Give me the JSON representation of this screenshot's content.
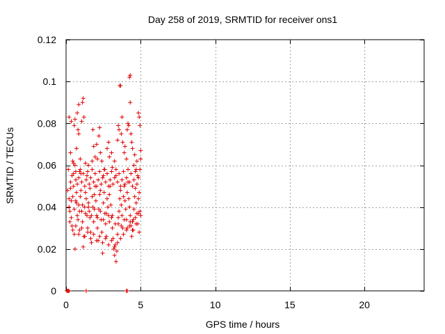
{
  "chart_data": {
    "type": "scatter",
    "title": "Day 258 of 2019, SRMTID for receiver ons1",
    "xlabel": "GPS time / hours",
    "ylabel": "SRMTID / TECUs",
    "xlim": [
      0,
      24
    ],
    "ylim": [
      0,
      0.12
    ],
    "xticks": [
      0,
      5,
      10,
      15,
      20
    ],
    "yticks": [
      0,
      0.02,
      0.04,
      0.06,
      0.08,
      0.1,
      0.12
    ],
    "grid": true,
    "legend": "none",
    "marker": "+",
    "color": "#e00000",
    "series": [
      {
        "name": "SRMTID",
        "points": [
          [
            0.05,
            0
          ],
          [
            0.1,
            0
          ],
          [
            0.15,
            0
          ],
          [
            0.2,
            0
          ],
          [
            1.35,
            0
          ],
          [
            4.05,
            0
          ],
          [
            4.1,
            0
          ],
          [
            0.2,
            0.083
          ],
          [
            0.35,
            0.081
          ],
          [
            0.55,
            0.079
          ],
          [
            0.6,
            0.082
          ],
          [
            0.75,
            0.085
          ],
          [
            0.85,
            0.089
          ],
          [
            1.15,
            0.092
          ],
          [
            1.1,
            0.09
          ],
          [
            1.2,
            0.083
          ],
          [
            1.05,
            0.081
          ],
          [
            0.3,
            0.066
          ],
          [
            0.45,
            0.062
          ],
          [
            0.5,
            0.056
          ],
          [
            0.6,
            0.06
          ],
          [
            0.65,
            0.053
          ],
          [
            0.7,
            0.068
          ],
          [
            0.8,
            0.077
          ],
          [
            0.95,
            0.063
          ],
          [
            0.9,
            0.057
          ],
          [
            0.85,
            0.075
          ],
          [
            1.0,
            0.056
          ],
          [
            1.3,
            0.061
          ],
          [
            1.4,
            0.055
          ],
          [
            1.5,
            0.06
          ],
          [
            1.6,
            0.049
          ],
          [
            1.75,
            0.062
          ],
          [
            1.8,
            0.077
          ],
          [
            1.85,
            0.069
          ],
          [
            1.95,
            0.064
          ],
          [
            2.05,
            0.07
          ],
          [
            2.1,
            0.063
          ],
          [
            2.2,
            0.074
          ],
          [
            2.25,
            0.078
          ],
          [
            2.3,
            0.066
          ],
          [
            2.4,
            0.062
          ],
          [
            2.5,
            0.055
          ],
          [
            2.6,
            0.058
          ],
          [
            2.75,
            0.068
          ],
          [
            2.85,
            0.071
          ],
          [
            2.9,
            0.064
          ],
          [
            3.05,
            0.066
          ],
          [
            3.1,
            0.059
          ],
          [
            3.25,
            0.062
          ],
          [
            3.35,
            0.055
          ],
          [
            3.45,
            0.072
          ],
          [
            3.5,
            0.079
          ],
          [
            3.55,
            0.077
          ],
          [
            3.6,
            0.098
          ],
          [
            3.65,
            0.098
          ],
          [
            3.7,
            0.075
          ],
          [
            3.75,
            0.083
          ],
          [
            3.8,
            0.071
          ],
          [
            3.9,
            0.066
          ],
          [
            3.95,
            0.069
          ],
          [
            4.05,
            0.063
          ],
          [
            4.1,
            0.077
          ],
          [
            4.15,
            0.08
          ],
          [
            4.2,
            0.079
          ],
          [
            4.25,
            0.102
          ],
          [
            4.3,
            0.103
          ],
          [
            4.3,
            0.09
          ],
          [
            4.35,
            0.075
          ],
          [
            4.4,
            0.071
          ],
          [
            4.45,
            0.068
          ],
          [
            4.55,
            0.06
          ],
          [
            4.6,
            0.065
          ],
          [
            4.7,
            0.058
          ],
          [
            4.75,
            0.062
          ],
          [
            4.8,
            0.055
          ],
          [
            4.85,
            0.085
          ],
          [
            4.9,
            0.083
          ],
          [
            4.95,
            0.079
          ],
          [
            5.0,
            0.067
          ],
          [
            5.0,
            0.063
          ],
          [
            0.1,
            0.048
          ],
          [
            0.2,
            0.044
          ],
          [
            0.25,
            0.038
          ],
          [
            0.3,
            0.049
          ],
          [
            0.35,
            0.035
          ],
          [
            0.4,
            0.031
          ],
          [
            0.45,
            0.045
          ],
          [
            0.5,
            0.05
          ],
          [
            0.55,
            0.027
          ],
          [
            0.6,
            0.02
          ],
          [
            0.65,
            0.043
          ],
          [
            0.7,
            0.047
          ],
          [
            0.75,
            0.036
          ],
          [
            0.8,
            0.034
          ],
          [
            0.85,
            0.041
          ],
          [
            0.9,
            0.029
          ],
          [
            0.95,
            0.045
          ],
          [
            1.0,
            0.048
          ],
          [
            1.05,
            0.038
          ],
          [
            1.1,
            0.033
          ],
          [
            1.15,
            0.021
          ],
          [
            1.2,
            0.026
          ],
          [
            1.25,
            0.04
          ],
          [
            1.3,
            0.047
          ],
          [
            1.35,
            0.044
          ],
          [
            1.4,
            0.036
          ],
          [
            1.45,
            0.03
          ],
          [
            1.5,
            0.042
          ],
          [
            1.55,
            0.038
          ],
          [
            1.6,
            0.035
          ],
          [
            1.65,
            0.028
          ],
          [
            1.7,
            0.023
          ],
          [
            1.75,
            0.045
          ],
          [
            1.8,
            0.04
          ],
          [
            1.85,
            0.033
          ],
          [
            1.9,
            0.046
          ],
          [
            1.95,
            0.05
          ],
          [
            2.0,
            0.043
          ],
          [
            2.05,
            0.036
          ],
          [
            2.1,
            0.03
          ],
          [
            2.15,
            0.024
          ],
          [
            2.2,
            0.039
          ],
          [
            2.25,
            0.046
          ],
          [
            2.3,
            0.048
          ],
          [
            2.35,
            0.034
          ],
          [
            2.4,
            0.028
          ],
          [
            2.45,
            0.018
          ],
          [
            2.5,
            0.042
          ],
          [
            2.55,
            0.047
          ],
          [
            2.6,
            0.037
          ],
          [
            2.65,
            0.032
          ],
          [
            2.7,
            0.026
          ],
          [
            2.75,
            0.044
          ],
          [
            2.8,
            0.04
          ],
          [
            2.85,
            0.036
          ],
          [
            2.9,
            0.046
          ],
          [
            2.95,
            0.05
          ],
          [
            3.0,
            0.041
          ],
          [
            3.05,
            0.035
          ],
          [
            3.1,
            0.03
          ],
          [
            3.15,
            0.025
          ],
          [
            3.2,
            0.02
          ],
          [
            3.25,
            0.017
          ],
          [
            3.3,
            0.022
          ],
          [
            3.35,
            0.014
          ],
          [
            3.4,
            0.019
          ],
          [
            3.45,
            0.027
          ],
          [
            3.5,
            0.032
          ],
          [
            3.55,
            0.038
          ],
          [
            3.6,
            0.044
          ],
          [
            3.65,
            0.048
          ],
          [
            3.7,
            0.041
          ],
          [
            3.75,
            0.036
          ],
          [
            3.8,
            0.03
          ],
          [
            3.85,
            0.045
          ],
          [
            3.9,
            0.05
          ],
          [
            3.95,
            0.043
          ],
          [
            4.0,
            0.039
          ],
          [
            4.05,
            0.034
          ],
          [
            4.1,
            0.047
          ],
          [
            4.15,
            0.052
          ],
          [
            4.2,
            0.044
          ],
          [
            4.25,
            0.04
          ],
          [
            4.3,
            0.036
          ],
          [
            4.35,
            0.031
          ],
          [
            4.4,
            0.026
          ],
          [
            4.45,
            0.029
          ],
          [
            4.5,
            0.034
          ],
          [
            4.55,
            0.039
          ],
          [
            4.6,
            0.045
          ],
          [
            4.65,
            0.049
          ],
          [
            4.7,
            0.042
          ],
          [
            4.75,
            0.037
          ],
          [
            4.8,
            0.032
          ],
          [
            4.85,
            0.044
          ],
          [
            4.9,
            0.047
          ],
          [
            4.95,
            0.038
          ],
          [
            5.0,
            0.036
          ],
          [
            0.15,
            0.058
          ],
          [
            0.3,
            0.052
          ],
          [
            0.4,
            0.055
          ],
          [
            0.5,
            0.061
          ],
          [
            0.65,
            0.057
          ],
          [
            0.75,
            0.051
          ],
          [
            0.85,
            0.054
          ],
          [
            0.95,
            0.058
          ],
          [
            1.05,
            0.052
          ],
          [
            1.15,
            0.056
          ],
          [
            1.25,
            0.05
          ],
          [
            1.35,
            0.053
          ],
          [
            1.45,
            0.057
          ],
          [
            1.55,
            0.051
          ],
          [
            1.65,
            0.054
          ],
          [
            1.75,
            0.058
          ],
          [
            1.85,
            0.052
          ],
          [
            1.95,
            0.056
          ],
          [
            2.05,
            0.05
          ],
          [
            2.15,
            0.053
          ],
          [
            2.25,
            0.057
          ],
          [
            2.35,
            0.051
          ],
          [
            2.45,
            0.054
          ],
          [
            2.55,
            0.058
          ],
          [
            2.65,
            0.052
          ],
          [
            2.75,
            0.056
          ],
          [
            2.85,
            0.05
          ],
          [
            2.95,
            0.053
          ],
          [
            3.05,
            0.057
          ],
          [
            3.15,
            0.051
          ],
          [
            3.25,
            0.054
          ],
          [
            3.35,
            0.058
          ],
          [
            3.45,
            0.052
          ],
          [
            3.55,
            0.056
          ],
          [
            3.65,
            0.05
          ],
          [
            3.75,
            0.053
          ],
          [
            3.85,
            0.057
          ],
          [
            3.95,
            0.051
          ],
          [
            4.05,
            0.054
          ],
          [
            4.15,
            0.058
          ],
          [
            4.25,
            0.052
          ],
          [
            4.35,
            0.056
          ],
          [
            4.45,
            0.05
          ],
          [
            4.55,
            0.053
          ],
          [
            4.65,
            0.057
          ],
          [
            4.75,
            0.051
          ],
          [
            4.85,
            0.054
          ],
          [
            4.95,
            0.058
          ],
          [
            0.2,
            0.04
          ],
          [
            0.35,
            0.043
          ],
          [
            0.55,
            0.039
          ],
          [
            0.7,
            0.042
          ],
          [
            0.9,
            0.038
          ],
          [
            1.1,
            0.041
          ],
          [
            1.3,
            0.037
          ],
          [
            1.5,
            0.04
          ],
          [
            1.7,
            0.036
          ],
          [
            1.9,
            0.039
          ],
          [
            2.1,
            0.035
          ],
          [
            2.3,
            0.038
          ],
          [
            2.5,
            0.034
          ],
          [
            2.7,
            0.037
          ],
          [
            2.9,
            0.033
          ],
          [
            3.1,
            0.036
          ],
          [
            3.3,
            0.032
          ],
          [
            3.5,
            0.035
          ],
          [
            3.7,
            0.031
          ],
          [
            3.9,
            0.034
          ],
          [
            4.1,
            0.03
          ],
          [
            4.3,
            0.033
          ],
          [
            4.5,
            0.029
          ],
          [
            4.7,
            0.032
          ],
          [
            4.9,
            0.028
          ],
          [
            0.25,
            0.033
          ],
          [
            0.45,
            0.029
          ],
          [
            0.65,
            0.031
          ],
          [
            0.85,
            0.027
          ],
          [
            1.05,
            0.03
          ],
          [
            1.25,
            0.026
          ],
          [
            1.45,
            0.028
          ],
          [
            1.65,
            0.025
          ],
          [
            1.85,
            0.027
          ],
          [
            2.05,
            0.024
          ],
          [
            2.25,
            0.026
          ],
          [
            2.45,
            0.023
          ],
          [
            2.65,
            0.025
          ],
          [
            2.85,
            0.022
          ],
          [
            3.05,
            0.024
          ],
          [
            3.25,
            0.021
          ],
          [
            3.45,
            0.023
          ],
          [
            3.65,
            0.025
          ],
          [
            3.85,
            0.027
          ],
          [
            4.05,
            0.029
          ],
          [
            4.25,
            0.031
          ],
          [
            4.45,
            0.033
          ],
          [
            4.65,
            0.035
          ],
          [
            4.85,
            0.037
          ]
        ]
      }
    ]
  }
}
